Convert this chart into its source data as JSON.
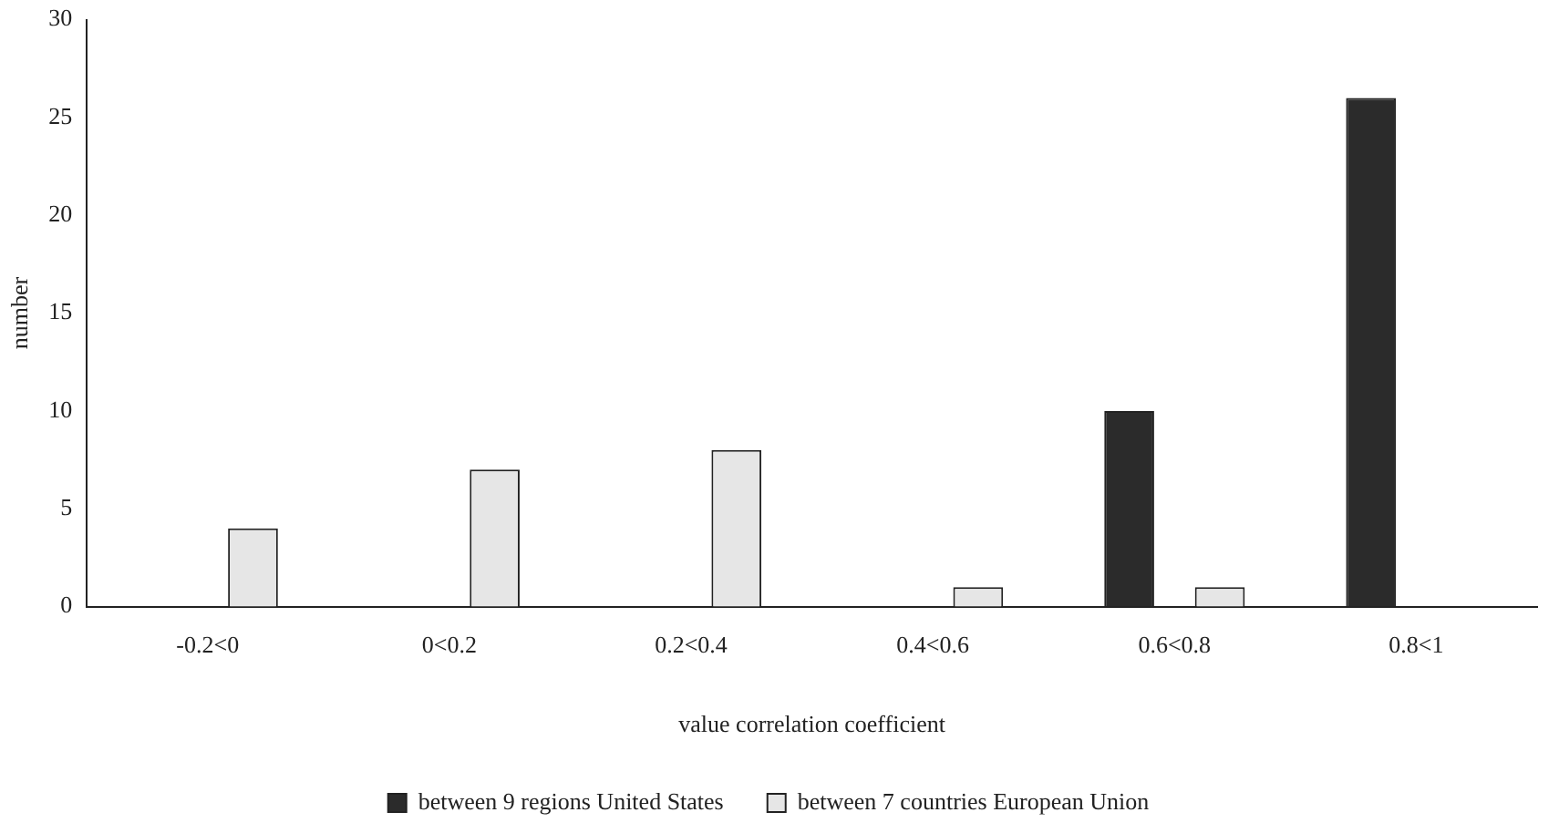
{
  "chart_data": {
    "type": "bar",
    "xlabel": "value correlation coefficient",
    "ylabel": "number",
    "categories": [
      "-0.2<0",
      "0<0.2",
      "0.2<0.4",
      "0.4<0.6",
      "0.6<0.8",
      "0.8<1"
    ],
    "series": [
      {
        "name": "between 9 regions United States",
        "color": "#2b2b2b",
        "values": [
          0,
          0,
          0,
          0,
          10,
          26
        ]
      },
      {
        "name": "between 7 countries European Union",
        "color": "#e6e6e6",
        "values": [
          4,
          7,
          8,
          1,
          1,
          0
        ]
      }
    ],
    "ylim": [
      0,
      30
    ],
    "yticks": [
      0,
      5,
      10,
      15,
      20,
      25,
      30
    ],
    "grid": false,
    "legend": "bottom"
  }
}
